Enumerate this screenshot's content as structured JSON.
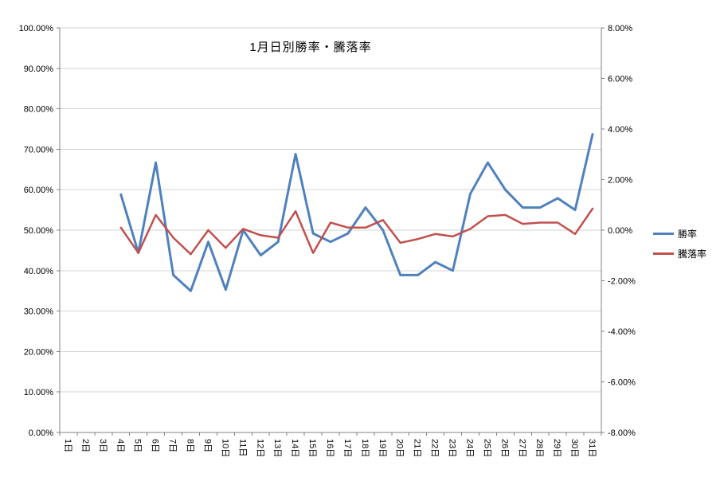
{
  "chart_data": {
    "type": "line",
    "title": "1月日別勝率・騰落率",
    "categories": [
      "1日",
      "2日",
      "3日",
      "4日",
      "5日",
      "6日",
      "7日",
      "8日",
      "9日",
      "10日",
      "11日",
      "12日",
      "13日",
      "14日",
      "15日",
      "16日",
      "17日",
      "18日",
      "19日",
      "20日",
      "21日",
      "22日",
      "23日",
      "24日",
      "25日",
      "26日",
      "27日",
      "28日",
      "29日",
      "30日",
      "31日"
    ],
    "series": [
      {
        "name": "勝率",
        "axis": "left",
        "color": "#4F81BD",
        "values": [
          null,
          null,
          null,
          58.8,
          44.4,
          66.7,
          38.9,
          35.0,
          47.1,
          35.3,
          50.0,
          43.8,
          47.1,
          68.8,
          49.2,
          47.1,
          49.2,
          55.6,
          50.0,
          38.9,
          38.9,
          42.1,
          40.0,
          59.0,
          66.7,
          60.0,
          55.6,
          55.6,
          57.9,
          55.0,
          73.7
        ]
      },
      {
        "name": "騰落率",
        "axis": "right",
        "color": "#C0504D",
        "values": [
          null,
          null,
          null,
          0.1,
          -0.9,
          0.6,
          -0.3,
          -0.95,
          0.0,
          -0.7,
          0.05,
          -0.2,
          -0.3,
          0.75,
          -0.9,
          0.3,
          0.1,
          0.1,
          0.4,
          -0.5,
          -0.35,
          -0.15,
          -0.25,
          0.05,
          0.55,
          0.6,
          0.25,
          0.3,
          0.3,
          -0.15,
          0.85
        ]
      }
    ],
    "left_axis": {
      "min": 0,
      "max": 100,
      "step": 10,
      "tick_labels": [
        "0.00%",
        "10.00%",
        "20.00%",
        "30.00%",
        "40.00%",
        "50.00%",
        "60.00%",
        "70.00%",
        "80.00%",
        "90.00%",
        "100.00%"
      ]
    },
    "right_axis": {
      "min": -8,
      "max": 8,
      "step": 2,
      "tick_labels": [
        "-8.00%",
        "-6.00%",
        "-4.00%",
        "-2.00%",
        "0.00%",
        "2.00%",
        "4.00%",
        "6.00%",
        "8.00%"
      ]
    },
    "grid": true,
    "legend_position": "right",
    "colors": {
      "gridline": "#D3D3D3",
      "axis": "#808080",
      "text": "#000000",
      "background": "#FFFFFF"
    }
  }
}
